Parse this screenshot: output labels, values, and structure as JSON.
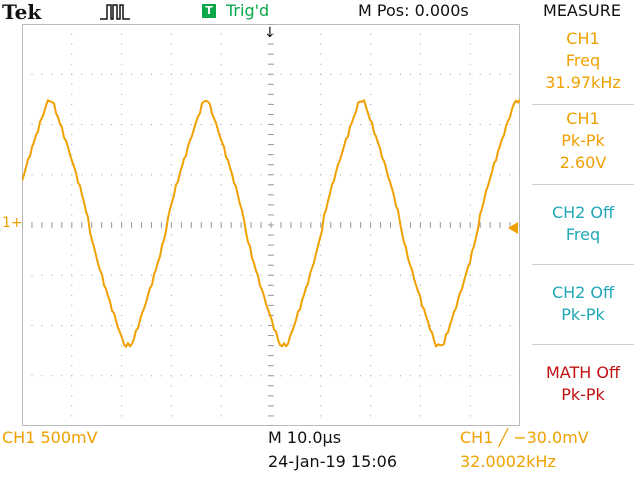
{
  "header": {
    "brand": "Tek",
    "trigger_badge": "T",
    "trigger_status": "Trig'd",
    "m_pos": "M Pos: 0.000s",
    "menu_title": "MEASURE"
  },
  "markers": {
    "trigger_position": "↓",
    "channel_marker": "1+"
  },
  "sidebar": {
    "items": [
      {
        "lines": [
          "CH1",
          "Freq",
          "31.97kHz"
        ],
        "color": "#f0a000"
      },
      {
        "lines": [
          "CH1",
          "Pk-Pk",
          "2.60V"
        ],
        "color": "#f0a000"
      },
      {
        "lines": [
          "CH2 Off",
          "Freq"
        ],
        "color": "#20a8b8"
      },
      {
        "lines": [
          "CH2 Off",
          "Pk-Pk"
        ],
        "color": "#20a8b8"
      },
      {
        "lines": [
          "MATH Off",
          "Pk-Pk"
        ],
        "color": "#c01010"
      }
    ]
  },
  "footer": {
    "ch1_scale": "CH1  500mV",
    "timebase": "M 10.0µs",
    "datetime": "24-Jan-19 15:06",
    "trigger": "CH1  ╱  −30.0mV",
    "trigger_freq": "32.0002kHz"
  },
  "colors": {
    "ch1": "#f0a000",
    "ch2": "#20a8b8",
    "math": "#c01010",
    "trig": "#0aa84a"
  },
  "waveform": {
    "channel": "CH1",
    "shape": "near-triangular periodic wave",
    "cycles_visible": 3.2,
    "peak_to_peak_V": 2.6,
    "frequency_kHz": 31.97,
    "volts_per_div": 0.5,
    "time_per_div_us": 10
  }
}
